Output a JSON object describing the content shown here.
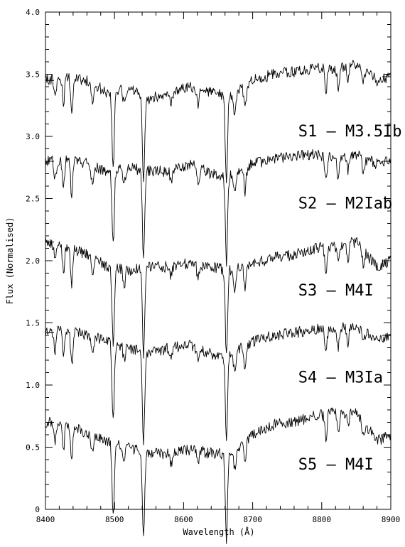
{
  "chart_data": {
    "type": "line",
    "title": "",
    "xlabel": "Wavelength (Å)",
    "ylabel": "Flux (Normalised)",
    "xlim": [
      8400,
      8900
    ],
    "ylim": [
      0,
      4.0
    ],
    "x_ticks": [
      8400,
      8500,
      8600,
      8700,
      8800,
      8900
    ],
    "x_tick_labels": [
      "8400",
      "8500",
      "8600",
      "8700",
      "8800",
      "8900"
    ],
    "y_ticks": [
      0,
      0.5,
      1.0,
      1.5,
      2.0,
      2.5,
      3.0,
      3.5,
      4.0
    ],
    "y_tick_labels": [
      "0",
      "0.5",
      "1.0",
      "1.5",
      "2.0",
      "2.5",
      "3.0",
      "3.5",
      "4.0"
    ],
    "grid": false,
    "legend": "none",
    "continuum_x": [
      8400,
      8430,
      8460,
      8490,
      8520,
      8550,
      8580,
      8610,
      8640,
      8670,
      8700,
      8730,
      8760,
      8790,
      8820,
      8850,
      8880,
      8900
    ],
    "absorption_lines": [
      {
        "x": 8414,
        "depth": 0.15
      },
      {
        "x": 8426,
        "depth": 0.22
      },
      {
        "x": 8438,
        "depth": 0.28
      },
      {
        "x": 8468,
        "depth": 0.15
      },
      {
        "x": 8498,
        "depth": 0.6
      },
      {
        "x": 8514,
        "depth": 0.12
      },
      {
        "x": 8542,
        "depth": 0.72
      },
      {
        "x": 8582,
        "depth": 0.08
      },
      {
        "x": 8621,
        "depth": 0.12
      },
      {
        "x": 8662,
        "depth": 0.7
      },
      {
        "x": 8674,
        "depth": 0.15
      },
      {
        "x": 8689,
        "depth": 0.18
      },
      {
        "x": 8806,
        "depth": 0.2
      },
      {
        "x": 8824,
        "depth": 0.15
      },
      {
        "x": 8838,
        "depth": 0.12
      },
      {
        "x": 8860,
        "depth": 0.1
      }
    ],
    "series": [
      {
        "name": "S1 – M3.5Ib",
        "continuum_y": [
          3.45,
          3.48,
          3.45,
          3.35,
          3.38,
          3.3,
          3.35,
          3.4,
          3.35,
          3.32,
          3.45,
          3.5,
          3.52,
          3.55,
          3.55,
          3.58,
          3.45,
          3.48
        ]
      },
      {
        "name": "S2 – M2Iab",
        "continuum_y": [
          2.8,
          2.82,
          2.78,
          2.72,
          2.75,
          2.72,
          2.72,
          2.78,
          2.7,
          2.68,
          2.78,
          2.82,
          2.85,
          2.85,
          2.82,
          2.85,
          2.78,
          2.8
        ]
      },
      {
        "name": "S3 – M4I",
        "continuum_y": [
          2.15,
          2.12,
          2.05,
          1.95,
          1.92,
          1.95,
          1.95,
          1.98,
          1.95,
          1.92,
          1.98,
          2.02,
          2.05,
          2.1,
          2.12,
          2.15,
          1.95,
          2.0
        ]
      },
      {
        "name": "S4 – M3Ia",
        "continuum_y": [
          1.42,
          1.45,
          1.4,
          1.35,
          1.3,
          1.25,
          1.3,
          1.32,
          1.25,
          1.25,
          1.35,
          1.4,
          1.42,
          1.45,
          1.45,
          1.48,
          1.35,
          1.4
        ]
      },
      {
        "name": "S5 – M4I",
        "continuum_y": [
          0.7,
          0.7,
          0.6,
          0.55,
          0.5,
          0.45,
          0.45,
          0.48,
          0.45,
          0.45,
          0.6,
          0.68,
          0.7,
          0.75,
          0.78,
          0.78,
          0.55,
          0.6
        ]
      }
    ],
    "labels": [
      {
        "text": "S1 – M3.5Ib",
        "x": 8766,
        "y": 3.0
      },
      {
        "text": "S2 – M2Iab",
        "x": 8766,
        "y": 2.42
      },
      {
        "text": "S3 – M4I",
        "x": 8766,
        "y": 1.72
      },
      {
        "text": "S4 – M3Ia",
        "x": 8766,
        "y": 1.02
      },
      {
        "text": "S5 – M4I",
        "x": 8766,
        "y": 0.32
      }
    ]
  }
}
